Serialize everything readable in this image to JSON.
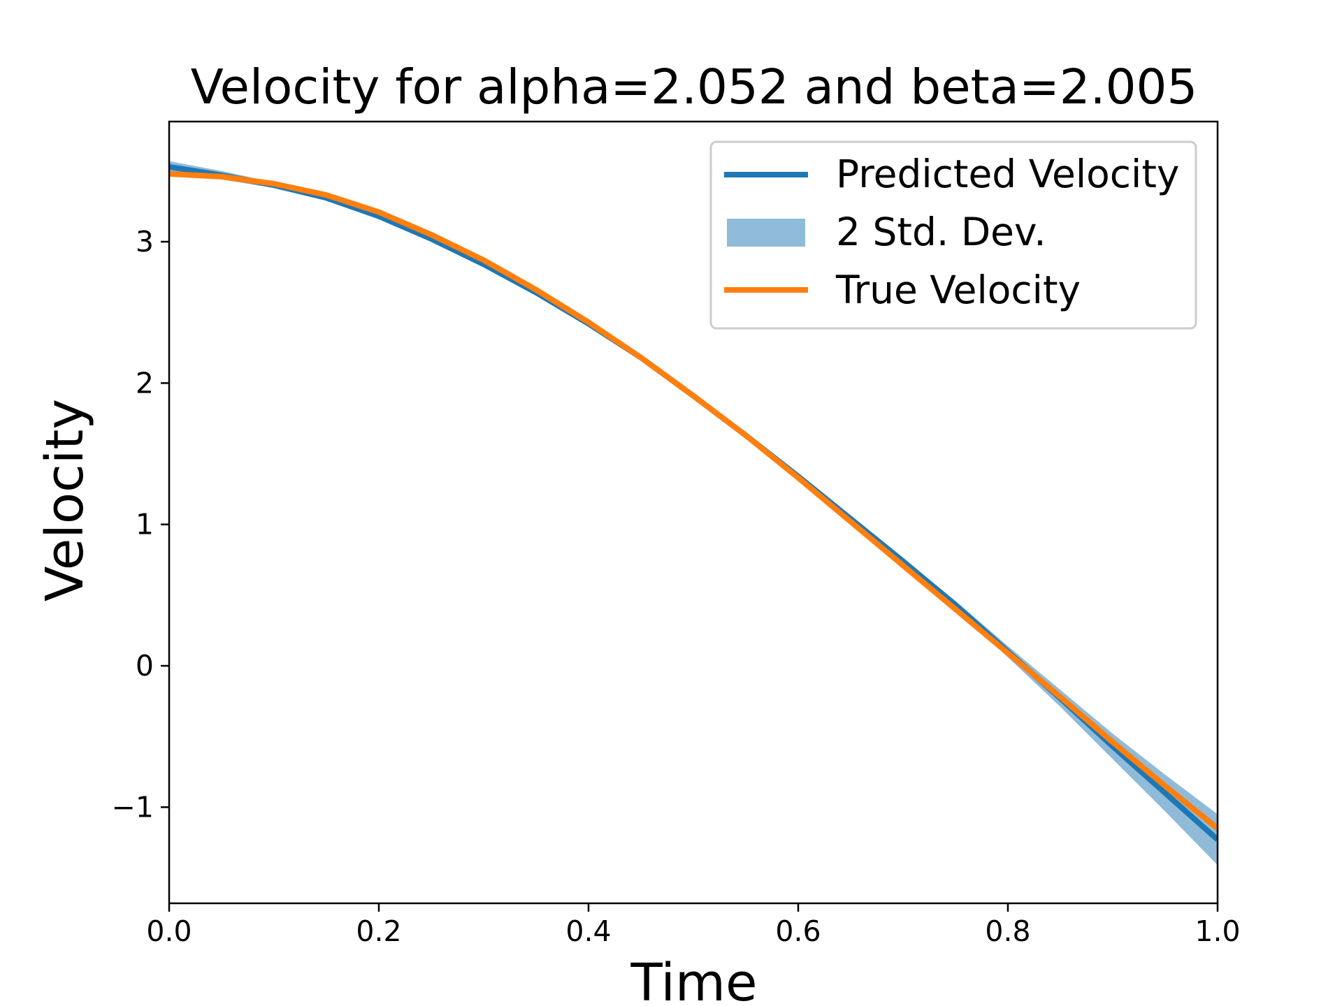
{
  "chart_data": {
    "type": "line",
    "title": "Velocity for alpha=2.052 and beta=2.005",
    "xlabel": "Time",
    "ylabel": "Velocity",
    "xlim": [
      0.0,
      1.0
    ],
    "ylim": [
      -1.68,
      3.85
    ],
    "xticks": [
      0.0,
      0.2,
      0.4,
      0.6,
      0.8,
      1.0
    ],
    "xtick_labels": [
      "0.0",
      "0.2",
      "0.4",
      "0.6",
      "0.8",
      "1.0"
    ],
    "yticks": [
      -1,
      0,
      1,
      2,
      3
    ],
    "ytick_labels": [
      "−1",
      "0",
      "1",
      "2",
      "3"
    ],
    "grid": false,
    "legend_position": "top-right",
    "colors": {
      "predicted": "#1f77b4",
      "band": "#1f77b4",
      "true": "#ff7f0e"
    },
    "x": [
      0.0,
      0.05,
      0.1,
      0.15,
      0.2,
      0.25,
      0.3,
      0.35,
      0.4,
      0.45,
      0.5,
      0.55,
      0.6,
      0.65,
      0.7,
      0.75,
      0.8,
      0.85,
      0.9,
      0.95,
      1.0
    ],
    "series": [
      {
        "name": "Predicted Velocity",
        "kind": "line",
        "values": [
          3.53,
          3.47,
          3.4,
          3.31,
          3.18,
          3.02,
          2.84,
          2.64,
          2.42,
          2.18,
          1.91,
          1.63,
          1.34,
          1.04,
          0.74,
          0.43,
          0.1,
          -0.23,
          -0.57,
          -0.9,
          -1.23
        ]
      },
      {
        "name": "2 Std. Dev.",
        "kind": "band",
        "lower": [
          3.49,
          3.44,
          3.38,
          3.29,
          3.16,
          3.0,
          2.82,
          2.63,
          2.41,
          2.17,
          1.9,
          1.62,
          1.33,
          1.03,
          0.72,
          0.4,
          0.06,
          -0.29,
          -0.66,
          -1.03,
          -1.41
        ],
        "upper": [
          3.57,
          3.5,
          3.42,
          3.33,
          3.2,
          3.04,
          2.86,
          2.65,
          2.43,
          2.19,
          1.92,
          1.64,
          1.35,
          1.05,
          0.76,
          0.46,
          0.14,
          -0.17,
          -0.48,
          -0.77,
          -1.05
        ]
      },
      {
        "name": "True Velocity",
        "kind": "line",
        "values": [
          3.48,
          3.46,
          3.41,
          3.33,
          3.21,
          3.05,
          2.87,
          2.66,
          2.43,
          2.18,
          1.91,
          1.63,
          1.33,
          1.02,
          0.71,
          0.4,
          0.09,
          -0.22,
          -0.54,
          -0.85,
          -1.15
        ]
      }
    ]
  }
}
